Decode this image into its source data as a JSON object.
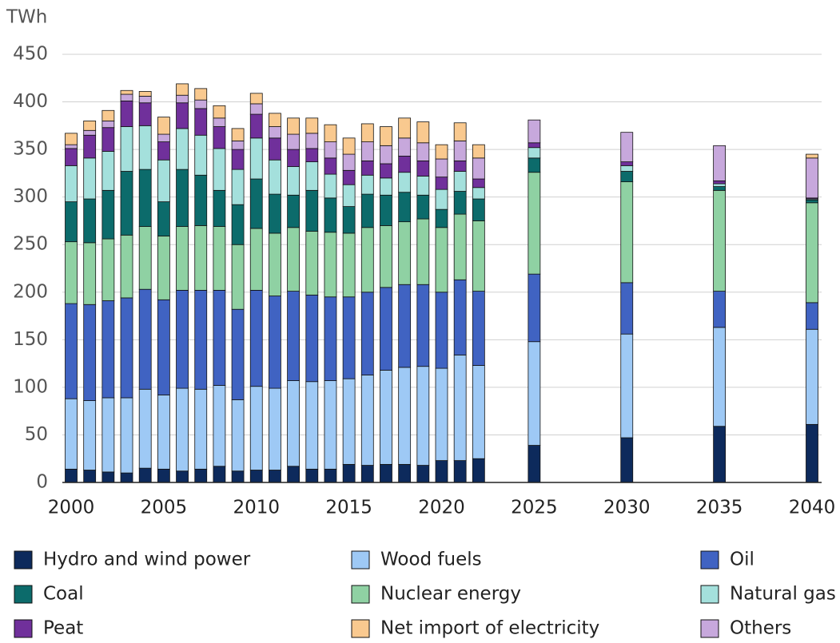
{
  "chart_data": {
    "type": "stacked_bar",
    "y_label": "TWh",
    "x": [
      2000,
      2001,
      2002,
      2003,
      2004,
      2005,
      2006,
      2007,
      2008,
      2009,
      2010,
      2011,
      2012,
      2013,
      2014,
      2015,
      2016,
      2017,
      2018,
      2019,
      2020,
      2021,
      2022,
      2025,
      2030,
      2035,
      2040
    ],
    "xlim": [
      2000,
      2040
    ],
    "xticks": [
      2000,
      2005,
      2010,
      2015,
      2020,
      2025,
      2030,
      2035,
      2040
    ],
    "ylim": [
      0,
      450
    ],
    "yticks": [
      0,
      50,
      100,
      150,
      200,
      250,
      300,
      350,
      400,
      450
    ],
    "grid": true,
    "series": [
      {
        "name": "Hydro and wind power",
        "color": "#0d2a5c",
        "values": [
          14,
          13,
          11,
          10,
          15,
          14,
          12,
          14,
          17,
          12,
          13,
          13,
          17,
          14,
          14,
          19,
          18,
          19,
          19,
          18,
          23,
          23,
          25,
          39,
          47,
          59,
          61
        ]
      },
      {
        "name": "Wood fuels",
        "color": "#9ec9f5",
        "values": [
          74,
          73,
          78,
          79,
          83,
          78,
          87,
          84,
          85,
          75,
          88,
          86,
          90,
          92,
          93,
          90,
          95,
          99,
          102,
          104,
          97,
          111,
          98,
          109,
          109,
          104,
          100
        ]
      },
      {
        "name": "Oil",
        "color": "#4063c2",
        "values": [
          100,
          101,
          102,
          105,
          105,
          100,
          103,
          104,
          100,
          95,
          101,
          97,
          94,
          91,
          88,
          86,
          87,
          87,
          87,
          86,
          80,
          79,
          78,
          71,
          54,
          38,
          28
        ]
      },
      {
        "name": "Nuclear energy",
        "color": "#8fd1a3",
        "values": [
          65,
          65,
          65,
          66,
          66,
          67,
          67,
          68,
          67,
          68,
          65,
          66,
          67,
          67,
          68,
          67,
          68,
          65,
          66,
          69,
          68,
          69,
          74,
          107,
          106,
          106,
          105
        ]
      },
      {
        "name": "Coal",
        "color": "#0c6b6b",
        "values": [
          42,
          46,
          51,
          67,
          60,
          36,
          60,
          53,
          38,
          42,
          52,
          41,
          34,
          43,
          36,
          28,
          35,
          32,
          31,
          25,
          19,
          24,
          23,
          15,
          11,
          4,
          3
        ]
      },
      {
        "name": "Natural gas",
        "color": "#a4e0dc",
        "values": [
          38,
          43,
          41,
          47,
          46,
          44,
          43,
          42,
          44,
          37,
          43,
          36,
          30,
          30,
          25,
          23,
          20,
          18,
          21,
          20,
          21,
          21,
          12,
          11,
          6,
          3,
          1
        ]
      },
      {
        "name": "Peat",
        "color": "#70309b",
        "values": [
          18,
          24,
          25,
          27,
          24,
          19,
          27,
          28,
          23,
          21,
          25,
          23,
          18,
          14,
          17,
          15,
          15,
          15,
          17,
          16,
          13,
          11,
          9,
          5,
          4,
          3,
          1
        ]
      },
      {
        "name": "Others",
        "color": "#c7a8dc",
        "values": [
          4,
          5,
          7,
          7,
          7,
          8,
          8,
          9,
          9,
          9,
          11,
          12,
          16,
          16,
          17,
          17,
          20,
          19,
          19,
          19,
          19,
          21,
          22,
          24,
          31,
          37,
          42
        ]
      },
      {
        "name": "Net import of electricity",
        "color": "#f9c98f",
        "values": [
          12,
          10,
          11,
          4,
          5,
          18,
          12,
          12,
          13,
          13,
          11,
          14,
          17,
          16,
          18,
          17,
          19,
          20,
          21,
          22,
          15,
          19,
          14,
          0,
          0,
          0,
          4
        ]
      }
    ]
  }
}
